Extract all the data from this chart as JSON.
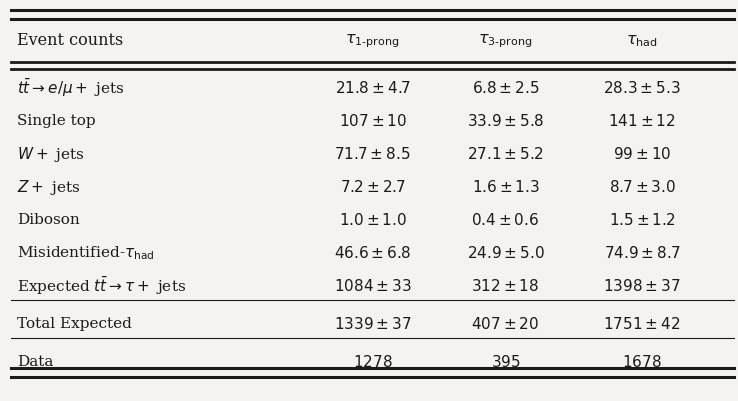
{
  "header_label": "Event counts",
  "header_cols": [
    "$\\tau_{1\\text{-prong}}$",
    "$\\tau_{3\\text{-prong}}$",
    "$\\tau_{\\mathrm{had}}$"
  ],
  "rows": [
    {
      "label": "$t\\bar{t} \\rightarrow e/\\mu +$ jets",
      "vals": [
        "$21.8 \\pm 4.7$",
        "$6.8 \\pm 2.5$",
        "$28.3 \\pm 5.3$"
      ],
      "gap_before": false,
      "line_before": false
    },
    {
      "label": "Single top",
      "vals": [
        "$107 \\pm 10$",
        "$33.9 \\pm 5.8$",
        "$141 \\pm 12$"
      ],
      "gap_before": false,
      "line_before": false
    },
    {
      "label": "$W +$ jets",
      "vals": [
        "$71.7 \\pm 8.5$",
        "$27.1 \\pm 5.2$",
        "$99 \\pm 10$"
      ],
      "gap_before": false,
      "line_before": false
    },
    {
      "label": "$Z +$ jets",
      "vals": [
        "$7.2 \\pm 2.7$",
        "$1.6 \\pm 1.3$",
        "$8.7 \\pm 3.0$"
      ],
      "gap_before": false,
      "line_before": false
    },
    {
      "label": "Diboson",
      "vals": [
        "$1.0 \\pm 1.0$",
        "$0.4 \\pm 0.6$",
        "$1.5 \\pm 1.2$"
      ],
      "gap_before": false,
      "line_before": false
    },
    {
      "label": "Misidentified-$\\tau_{\\mathrm{had}}$",
      "vals": [
        "$46.6 \\pm 6.8$",
        "$24.9 \\pm 5.0$",
        "$74.9 \\pm 8.7$"
      ],
      "gap_before": false,
      "line_before": false
    },
    {
      "label": "Expected $t\\bar{t} \\rightarrow \\tau +$ jets",
      "vals": [
        "$1084 \\pm 33$",
        "$312 \\pm 18$",
        "$1398 \\pm 37$"
      ],
      "gap_before": false,
      "line_before": false
    },
    {
      "label": "Total Expected",
      "vals": [
        "$1339 \\pm 37$",
        "$407 \\pm 20$",
        "$1751 \\pm 42$"
      ],
      "gap_before": true,
      "line_before": true
    },
    {
      "label": "Data",
      "vals": [
        "$1278$",
        "$395$",
        "$1678$"
      ],
      "gap_before": true,
      "line_before": true
    }
  ],
  "bg_color": "#f5f3ef",
  "text_color": "#1a1a1a",
  "line_color": "#1a1a1a",
  "fontsize": 11.0,
  "header_fontsize": 11.5
}
